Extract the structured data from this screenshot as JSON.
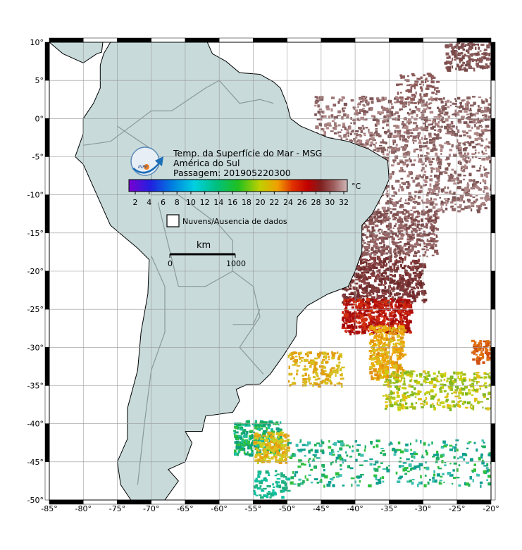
{
  "map": {
    "title_lines": [
      "Temp. da Superfície do Mar - MSG",
      "América do Sul",
      "Passagem: 201905220300"
    ],
    "logo": "INPE",
    "colorbar": {
      "ticks": [
        2,
        4,
        6,
        8,
        10,
        12,
        14,
        16,
        18,
        20,
        22,
        24,
        26,
        28,
        30,
        32
      ],
      "unit": "°C"
    },
    "legend": "Nuvens/Ausencia de dados",
    "scale": {
      "unit": "km",
      "labels": [
        0,
        1000
      ]
    },
    "lat_labels": [
      "10°",
      "5°",
      "0°",
      "-5°",
      "-10°",
      "-15°",
      "-20°",
      "-25°",
      "-30°",
      "-35°",
      "-40°",
      "-45°",
      "-50°"
    ],
    "lon_labels": [
      "-85°",
      "-80°",
      "-75°",
      "-70°",
      "-65°",
      "-60°",
      "-55°",
      "-50°",
      "-45°",
      "-40°",
      "-35°",
      "-30°",
      "-25°",
      "-20°"
    ]
  }
}
